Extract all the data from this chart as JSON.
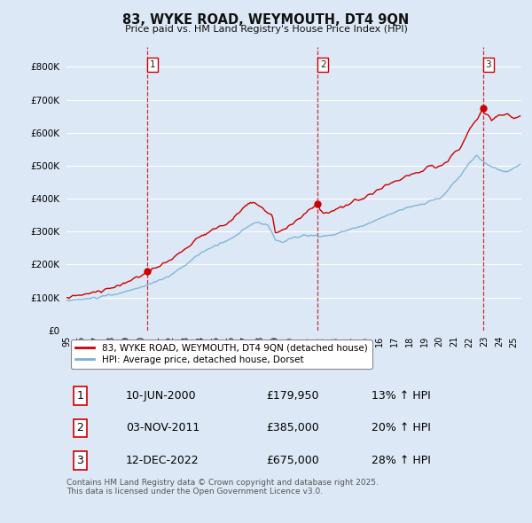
{
  "title": "83, WYKE ROAD, WEYMOUTH, DT4 9QN",
  "subtitle": "Price paid vs. HM Land Registry's House Price Index (HPI)",
  "ylabel_ticks": [
    "£0",
    "£100K",
    "£200K",
    "£300K",
    "£400K",
    "£500K",
    "£600K",
    "£700K",
    "£800K"
  ],
  "ytick_values": [
    0,
    100000,
    200000,
    300000,
    400000,
    500000,
    600000,
    700000,
    800000
  ],
  "ylim": [
    0,
    860000
  ],
  "xlim_start": 1995.0,
  "xlim_end": 2025.5,
  "background_color": "#dce8f5",
  "plot_bg_color": "#dce8f5",
  "grid_color": "#ffffff",
  "line_color_red": "#cc0000",
  "line_color_blue": "#7ab0d4",
  "sale_dates": [
    2000.44,
    2011.84,
    2022.95
  ],
  "sale_prices": [
    179950,
    385000,
    675000
  ],
  "sale_labels": [
    "1",
    "2",
    "3"
  ],
  "vline_color": "#cc0000",
  "legend_label_red": "83, WYKE ROAD, WEYMOUTH, DT4 9QN (detached house)",
  "legend_label_blue": "HPI: Average price, detached house, Dorset",
  "table_rows": [
    [
      "1",
      "10-JUN-2000",
      "£179,950",
      "13% ↑ HPI"
    ],
    [
      "2",
      "03-NOV-2011",
      "£385,000",
      "20% ↑ HPI"
    ],
    [
      "3",
      "12-DEC-2022",
      "£675,000",
      "28% ↑ HPI"
    ]
  ],
  "footer_text": "Contains HM Land Registry data © Crown copyright and database right 2025.\nThis data is licensed under the Open Government Licence v3.0."
}
